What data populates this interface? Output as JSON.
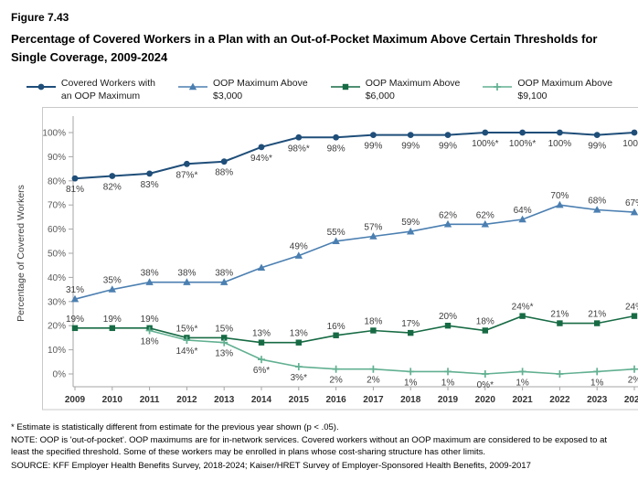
{
  "figure_label": "Figure 7.43",
  "title": "Percentage of Covered Workers in a Plan with an Out-of-Pocket Maximum Above Certain Thresholds for Single Coverage, 2009-2024",
  "legend": [
    {
      "lines": [
        "Covered Workers with",
        "an OOP Maximum"
      ],
      "marker": "circle",
      "color": "#1F4E79"
    },
    {
      "lines": [
        "OOP Maximum Above",
        "$3,000"
      ],
      "marker": "triangle",
      "color": "#4B7FB1"
    },
    {
      "lines": [
        "OOP Maximum Above",
        "$6,000"
      ],
      "marker": "square",
      "color": "#176B44"
    },
    {
      "lines": [
        "OOP Maximum Above",
        "$9,100"
      ],
      "marker": "plus",
      "color": "#62B092"
    }
  ],
  "chart_data": {
    "type": "line",
    "title": "Percentage of Covered Workers in a Plan with an Out-of-Pocket Maximum Above Certain Thresholds for Single Coverage, 2009-2024",
    "xlabel": "",
    "ylabel": "Percentage of Covered Workers",
    "ylim": [
      0,
      100
    ],
    "grid": false,
    "legend_position": "top",
    "x": [
      2009,
      2010,
      2011,
      2012,
      2013,
      2014,
      2015,
      2016,
      2017,
      2018,
      2019,
      2020,
      2021,
      2022,
      2023,
      2024
    ],
    "yticks": [
      "0%",
      "10%",
      "20%",
      "30%",
      "40%",
      "50%",
      "60%",
      "70%",
      "80%",
      "90%",
      "100%"
    ],
    "series": [
      {
        "name": "Covered Workers with an OOP Maximum",
        "color": "#1F4E79",
        "marker": "circle",
        "label_position": "below",
        "values": [
          81,
          82,
          83,
          87,
          88,
          94,
          98,
          98,
          99,
          99,
          99,
          100,
          100,
          100,
          99,
          100
        ],
        "labels": [
          "81%",
          "82%",
          "83%",
          "87%*",
          "88%",
          "94%*",
          "98%*",
          "98%",
          "99%",
          "99%",
          "99%",
          "100%*",
          "100%*",
          "100%",
          "99%",
          "100%"
        ]
      },
      {
        "name": "OOP Maximum Above $3,000",
        "color": "#4B7FB1",
        "marker": "triangle",
        "label_position": "above",
        "values": [
          31,
          35,
          38,
          38,
          38,
          44,
          49,
          55,
          57,
          59,
          62,
          62,
          64,
          70,
          68,
          67
        ],
        "labels": [
          "31%",
          "35%",
          "38%",
          "38%",
          "38%",
          "",
          "49%",
          "55%",
          "57%",
          "59%",
          "62%",
          "62%",
          "64%",
          "70%",
          "68%",
          "67%"
        ]
      },
      {
        "name": "OOP Maximum Above $6,000",
        "color": "#176B44",
        "marker": "square",
        "label_position": "above",
        "values": [
          19,
          19,
          19,
          15,
          15,
          13,
          13,
          16,
          18,
          17,
          20,
          18,
          24,
          21,
          21,
          24
        ],
        "labels": [
          "19%",
          "19%",
          "19%",
          "15%*",
          "15%",
          "13%",
          "13%",
          "16%",
          "18%",
          "17%",
          "20%",
          "18%",
          "24%*",
          "21%",
          "21%",
          "24%"
        ]
      },
      {
        "name": "OOP Maximum Above $9,100",
        "color": "#62B092",
        "marker": "plus",
        "label_position": "below",
        "values": [
          null,
          null,
          18,
          14,
          13,
          6,
          3,
          2,
          2,
          1,
          1,
          0,
          1,
          0,
          1,
          2
        ],
        "labels": [
          "",
          "",
          "18%",
          "14%*",
          "13%",
          "6%*",
          "3%*",
          "2%",
          "2%",
          "1%",
          "1%",
          "0%*",
          "1%",
          "",
          "1%",
          "2%"
        ]
      }
    ]
  },
  "footnotes": [
    "* Estimate is statistically different from estimate for the previous year shown (p < .05).",
    "NOTE: OOP is 'out-of-pocket'. OOP maximums are for in-network services. Covered workers without an OOP maximum are considered to be exposed to at least the specified threshold. Some of these workers may be enrolled in plans whose cost-sharing structure has other limits.",
    "SOURCE: KFF Employer Health Benefits Survey, 2018-2024; Kaiser/HRET Survey of Employer-Sponsored Health Benefits, 2009-2017"
  ]
}
